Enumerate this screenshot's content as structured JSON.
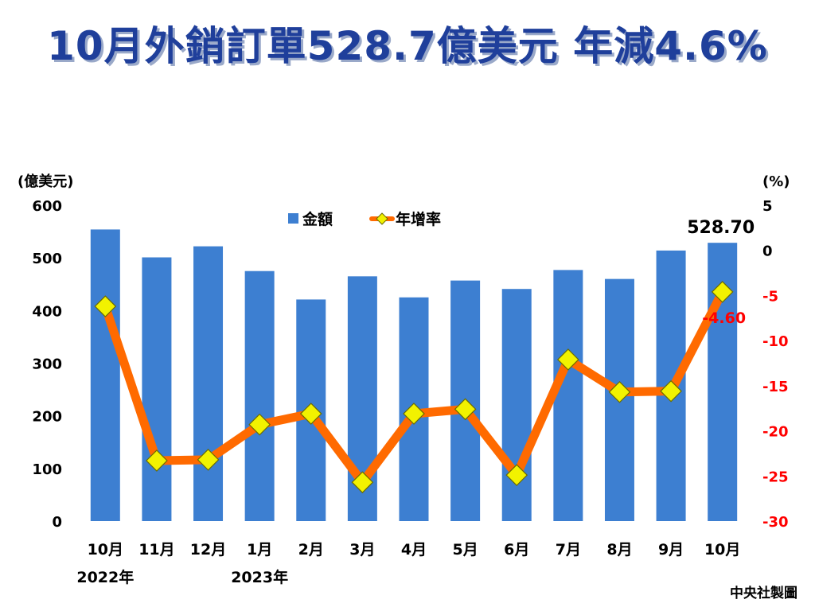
{
  "page": {
    "title": "10月外銷訂單528.7億美元 年減4.6%",
    "credit": "中央社製圖"
  },
  "colors": {
    "title": "#1f3f9b",
    "bar": "#3d7fd1",
    "line": "#ff6a00",
    "marker_fill": "#f2f200",
    "negative_label": "#ff0000"
  },
  "chart_data": {
    "type": "bar",
    "categories": [
      "10月",
      "11月",
      "12月",
      "1月",
      "2月",
      "3月",
      "4月",
      "5月",
      "6月",
      "7月",
      "8月",
      "9月",
      "10月"
    ],
    "year_labels": [
      {
        "index": 0,
        "text": "2022年"
      },
      {
        "index": 3,
        "text": "2023年"
      }
    ],
    "series": [
      {
        "name": "金額",
        "type": "bar",
        "axis": "left",
        "values": [
          554,
          501,
          522,
          475,
          421,
          465,
          425,
          457,
          441,
          477,
          460,
          514,
          528.7
        ]
      },
      {
        "name": "年增率",
        "type": "line",
        "axis": "right",
        "values": [
          -6.2,
          -23.3,
          -23.2,
          -19.3,
          -18.1,
          -25.7,
          -18.1,
          -17.6,
          -24.9,
          -12.1,
          -15.7,
          -15.6,
          -4.6
        ]
      }
    ],
    "ylabel_left": "(億美元)",
    "ylabel_right": "(%)",
    "ylim_left": [
      0,
      600
    ],
    "yticks_left": [
      0,
      100,
      200,
      300,
      400,
      500,
      600
    ],
    "ylim_right": [
      -30,
      5
    ],
    "yticks_right": [
      5,
      0,
      -5,
      -10,
      -15,
      -20,
      -25,
      -30
    ],
    "annotations": [
      {
        "series": "金額",
        "index": 12,
        "text": "528.70"
      },
      {
        "series": "年增率",
        "index": 12,
        "text": "-4.60"
      }
    ],
    "legend_position": "top-center",
    "grid": false
  }
}
